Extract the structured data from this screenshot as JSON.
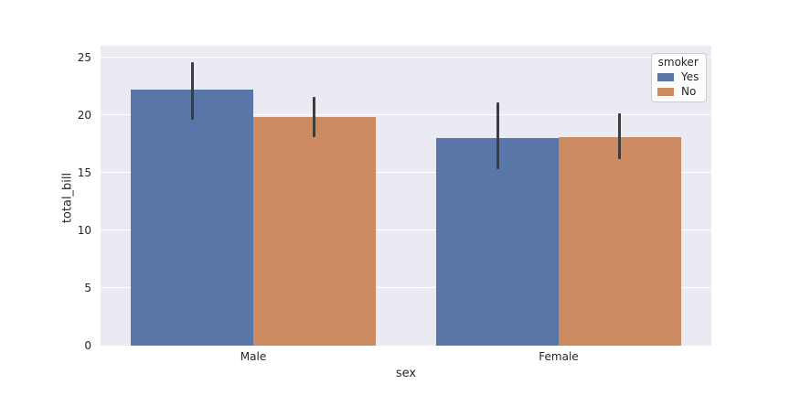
{
  "chart_data": {
    "type": "bar",
    "title": "",
    "xlabel": "sex",
    "ylabel": "total_bill",
    "categories": [
      "Male",
      "Female"
    ],
    "series": [
      {
        "name": "Yes",
        "color": "#5877a8",
        "values": [
          22.2,
          18.0
        ],
        "ci_low": [
          19.6,
          15.3
        ],
        "ci_high": [
          24.6,
          21.1
        ]
      },
      {
        "name": "No",
        "color": "#cb8a60",
        "values": [
          19.8,
          18.1
        ],
        "ci_low": [
          18.1,
          16.2
        ],
        "ci_high": [
          21.6,
          20.1
        ]
      }
    ],
    "yticks": [
      0,
      5,
      10,
      15,
      20,
      25
    ],
    "ylim": [
      0,
      26
    ],
    "xlim": [
      -0.5,
      1.5
    ],
    "bar_width": 0.4,
    "grid": true,
    "legend": {
      "title": "smoker",
      "position": "upper right"
    },
    "colors": {
      "figure_background": "#ffffff",
      "axes_background": "#eaeaf2",
      "grid": "#ffffff",
      "error_bar": "#3d3d3d",
      "text": "#262626"
    }
  }
}
